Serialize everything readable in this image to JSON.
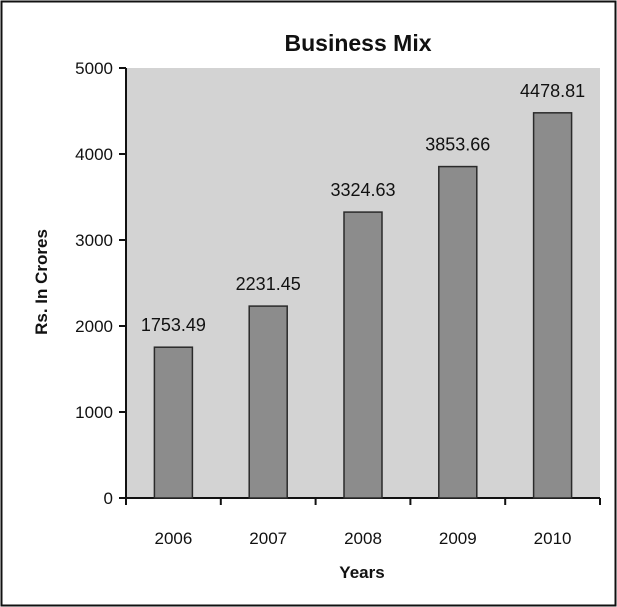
{
  "chart_data": {
    "type": "bar",
    "title": "Business Mix",
    "xlabel": "Years",
    "ylabel": "Rs. In Crores",
    "categories": [
      "2006",
      "2007",
      "2008",
      "2009",
      "2010"
    ],
    "values": [
      1753.49,
      2231.45,
      3324.63,
      3853.66,
      4478.81
    ],
    "value_labels": [
      "1753.49",
      "2231.45",
      "3324.63",
      "3853.66",
      "4478.81"
    ],
    "ylim": [
      0,
      5000
    ],
    "yticks": [
      0,
      1000,
      2000,
      3000,
      4000,
      5000
    ],
    "ytick_labels": [
      "0",
      "1000",
      "2000",
      "3000",
      "4000",
      "5000"
    ],
    "grid": false,
    "legend": "none",
    "colors": {
      "bar_fill": "#8c8c8c",
      "bar_stroke": "#2a2a2a",
      "plot_background": "#d3d3d3",
      "frame": "#111111"
    }
  }
}
